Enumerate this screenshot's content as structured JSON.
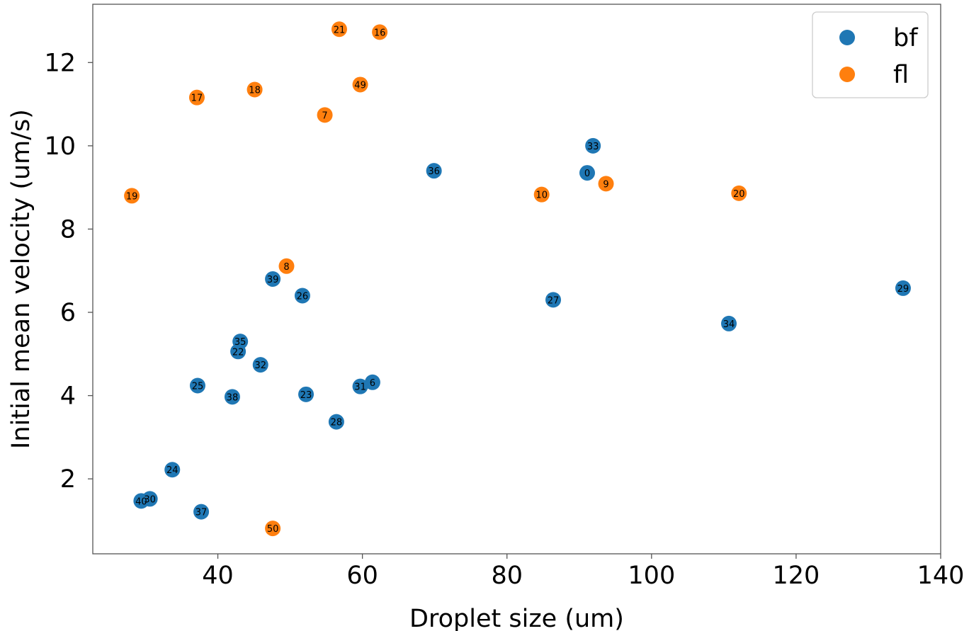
{
  "chart_data": {
    "type": "scatter",
    "title": "",
    "xlabel": "Droplet size (um)",
    "ylabel": "Initial mean velocity (um/s)",
    "xlim": [
      22.7,
      140
    ],
    "ylim": [
      0.2,
      13.4
    ],
    "xticks": [
      40,
      60,
      80,
      100,
      120,
      140
    ],
    "yticks": [
      2,
      4,
      6,
      8,
      10,
      12
    ],
    "grid": false,
    "legend_position": "top-right",
    "series": [
      {
        "name": "bf",
        "color": "#1f77b4",
        "points": [
          {
            "label": "33",
            "x": 91.9,
            "y": 10.0
          },
          {
            "label": "0",
            "x": 91.1,
            "y": 9.35
          },
          {
            "label": "36",
            "x": 69.9,
            "y": 9.4
          },
          {
            "label": "39",
            "x": 47.6,
            "y": 6.8
          },
          {
            "label": "26",
            "x": 51.7,
            "y": 6.4
          },
          {
            "label": "27",
            "x": 86.4,
            "y": 6.3
          },
          {
            "label": "29",
            "x": 134.8,
            "y": 6.58
          },
          {
            "label": "34",
            "x": 110.7,
            "y": 5.73
          },
          {
            "label": "35",
            "x": 43.1,
            "y": 5.3
          },
          {
            "label": "22",
            "x": 42.8,
            "y": 5.06
          },
          {
            "label": "32",
            "x": 45.9,
            "y": 4.74
          },
          {
            "label": "25",
            "x": 37.2,
            "y": 4.24
          },
          {
            "label": "38",
            "x": 42.0,
            "y": 3.97
          },
          {
            "label": "23",
            "x": 52.2,
            "y": 4.03
          },
          {
            "label": "31",
            "x": 59.7,
            "y": 4.22
          },
          {
            "label": "6",
            "x": 61.4,
            "y": 4.32
          },
          {
            "label": "28",
            "x": 56.4,
            "y": 3.37
          },
          {
            "label": "24",
            "x": 33.7,
            "y": 2.22
          },
          {
            "label": "40",
            "x": 29.4,
            "y": 1.47
          },
          {
            "label": "30",
            "x": 30.6,
            "y": 1.52
          },
          {
            "label": "37",
            "x": 37.7,
            "y": 1.21
          }
        ]
      },
      {
        "name": "fl",
        "color": "#ff7f0e",
        "points": [
          {
            "label": "21",
            "x": 56.8,
            "y": 12.8
          },
          {
            "label": "16",
            "x": 62.4,
            "y": 12.73
          },
          {
            "label": "49",
            "x": 59.7,
            "y": 11.47
          },
          {
            "label": "18",
            "x": 45.1,
            "y": 11.35
          },
          {
            "label": "17",
            "x": 37.1,
            "y": 11.16
          },
          {
            "label": "7",
            "x": 54.8,
            "y": 10.74
          },
          {
            "label": "19",
            "x": 28.1,
            "y": 8.8
          },
          {
            "label": "10",
            "x": 84.8,
            "y": 8.83
          },
          {
            "label": "9",
            "x": 93.7,
            "y": 9.09
          },
          {
            "label": "20",
            "x": 112.1,
            "y": 8.86
          },
          {
            "label": "8",
            "x": 49.5,
            "y": 7.11
          },
          {
            "label": "50",
            "x": 47.6,
            "y": 0.81
          }
        ]
      }
    ]
  }
}
